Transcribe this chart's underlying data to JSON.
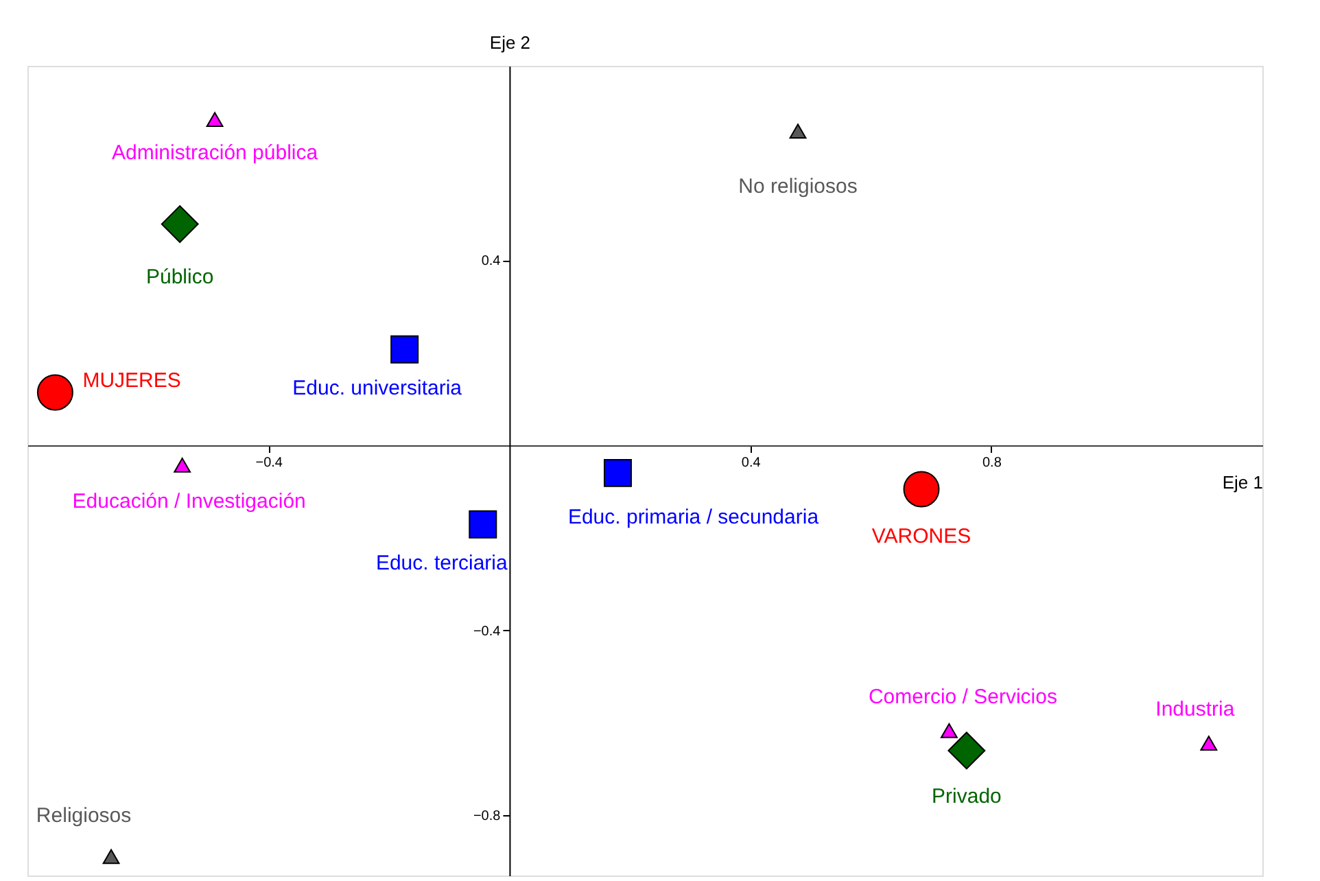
{
  "chart_data": {
    "type": "scatter",
    "xlabel": "Eje 1",
    "ylabel": "Eje 2",
    "xlim": [
      -0.8,
      1.25
    ],
    "ylim": [
      -0.93,
      0.82
    ],
    "xticks": [
      -0.4,
      0.4,
      0.8
    ],
    "yticks": [
      0.4,
      -0.4,
      -0.8
    ],
    "grid": false,
    "series": [
      {
        "color": "#ff0000",
        "marker": "circle",
        "x": [
          -0.754,
          0.684
        ],
        "values": [
          0.114,
          -0.095
        ]
      },
      {
        "color": "#595959",
        "marker": "triangle",
        "x": [
          0.479,
          -0.661
        ],
        "values": [
          0.679,
          -0.889
        ]
      },
      {
        "color": "#0000ff",
        "marker": "square",
        "x": [
          -0.174,
          -0.044,
          0.18
        ],
        "values": [
          0.207,
          -0.171,
          -0.06
        ]
      },
      {
        "color": "#006400",
        "marker": "diamond",
        "x": [
          -0.547,
          0.759
        ],
        "values": [
          0.478,
          -0.66
        ]
      },
      {
        "color": "#ff00ff",
        "marker": "triangle",
        "x": [
          -0.489,
          -0.543,
          0.73,
          1.161
        ],
        "values": [
          0.704,
          -0.043,
          -0.617,
          -0.644
        ]
      }
    ],
    "annotations": [
      {
        "text": "Administración pública",
        "x": -0.489,
        "y": 0.704
      },
      {
        "text": "Público",
        "x": -0.547,
        "y": 0.478
      },
      {
        "text": "MUJERES",
        "x": -0.754,
        "y": 0.114
      },
      {
        "text": "Educ. universitaria",
        "x": -0.174,
        "y": 0.207
      },
      {
        "text": "Educación / Investigación",
        "x": -0.543,
        "y": -0.043
      },
      {
        "text": "Educ. terciaria",
        "x": -0.044,
        "y": -0.171
      },
      {
        "text": "Educ. primaria / secundaria",
        "x": 0.18,
        "y": -0.06
      },
      {
        "text": "VARONES",
        "x": 0.684,
        "y": -0.095
      },
      {
        "text": "No religiosos",
        "x": 0.479,
        "y": 0.679
      },
      {
        "text": "Comercio / Servicios",
        "x": 0.73,
        "y": -0.617
      },
      {
        "text": "Privado",
        "x": 0.759,
        "y": -0.66
      },
      {
        "text": "Industria",
        "x": 1.161,
        "y": -0.644
      },
      {
        "text": "Religiosos",
        "x": -0.661,
        "y": -0.889
      }
    ]
  }
}
